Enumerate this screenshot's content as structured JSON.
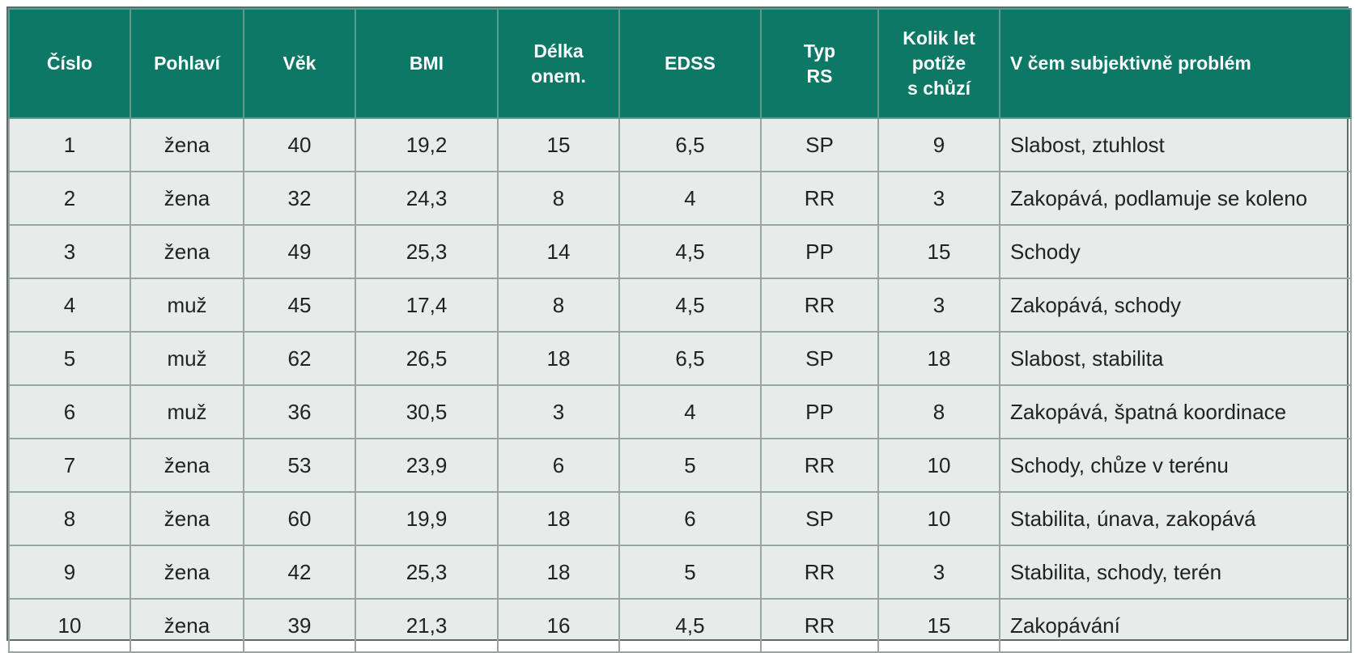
{
  "table": {
    "headers": [
      [
        "Číslo"
      ],
      [
        "Pohlaví"
      ],
      [
        "Věk"
      ],
      [
        "BMI"
      ],
      [
        "Délka",
        "onem."
      ],
      [
        "EDSS"
      ],
      [
        "Typ",
        "RS"
      ],
      [
        "Kolik let",
        "potíže",
        "s chůzí"
      ],
      [
        "V čem subjektivně problém"
      ]
    ],
    "rows": [
      [
        "1",
        "žena",
        "40",
        "19,2",
        "15",
        "6,5",
        "SP",
        "9",
        "Slabost, ztuhlost"
      ],
      [
        "2",
        "žena",
        "32",
        "24,3",
        "8",
        "4",
        "RR",
        "3",
        "Zakopává, podlamuje se koleno"
      ],
      [
        "3",
        "žena",
        "49",
        "25,3",
        "14",
        "4,5",
        "PP",
        "15",
        "Schody"
      ],
      [
        "4",
        "muž",
        "45",
        "17,4",
        "8",
        "4,5",
        "RR",
        "3",
        "Zakopává, schody"
      ],
      [
        "5",
        "muž",
        "62",
        "26,5",
        "18",
        "6,5",
        "SP",
        "18",
        "Slabost, stabilita"
      ],
      [
        "6",
        "muž",
        "36",
        "30,5",
        "3",
        "4",
        "PP",
        "8",
        "Zakopává, špatná koordinace"
      ],
      [
        "7",
        "žena",
        "53",
        "23,9",
        "6",
        "5",
        "RR",
        "10",
        "Schody, chůze v terénu"
      ],
      [
        "8",
        "žena",
        "60",
        "19,9",
        "18",
        "6",
        "SP",
        "10",
        "Stabilita, únava, zakopává"
      ],
      [
        "9",
        "žena",
        "42",
        "25,3",
        "18",
        "5",
        "RR",
        "3",
        "Stabilita, schody, terén"
      ],
      [
        "10",
        "žena",
        "39",
        "21,3",
        "16",
        "4,5",
        "RR",
        "15",
        "Zakopávání"
      ]
    ]
  },
  "colors": {
    "header_bg": "#0c7865",
    "header_text": "#ffffff",
    "body_bg": "#e6ece9",
    "grid_line": "#9aa5a3"
  }
}
